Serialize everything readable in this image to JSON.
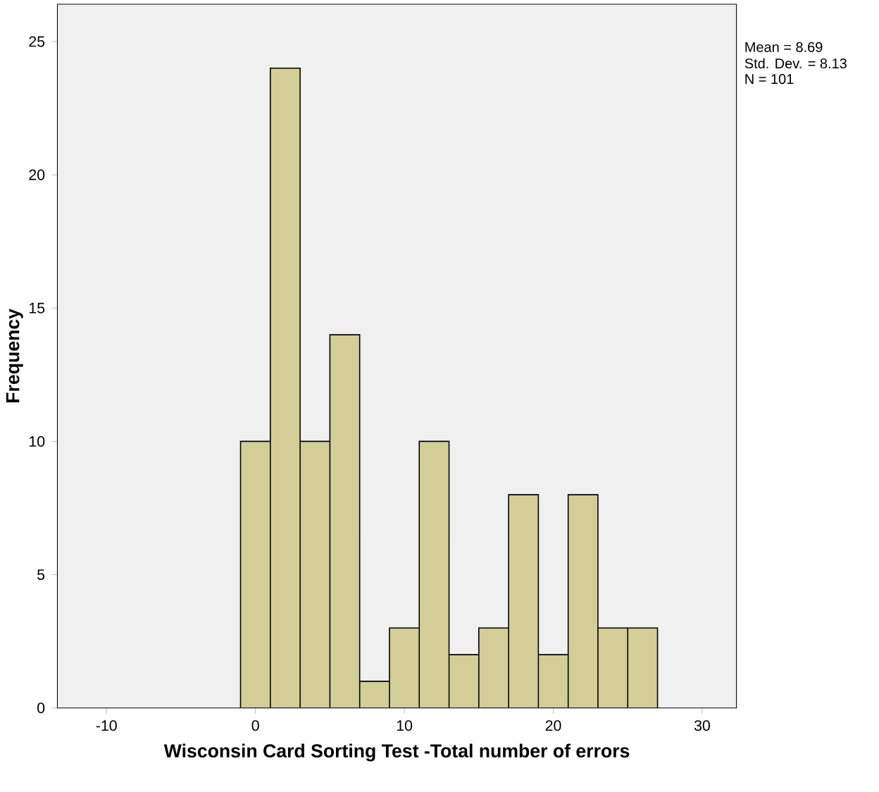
{
  "chart_data": {
    "type": "histogram",
    "xlabel": "Wisconsin Card Sorting Test -Total number of errors",
    "ylabel": "Frequency",
    "bins": [
      -1,
      1,
      3,
      5,
      7,
      9,
      11,
      13,
      15,
      17,
      19,
      21,
      23,
      25,
      27
    ],
    "values": [
      10,
      24,
      10,
      14,
      1,
      3,
      10,
      2,
      3,
      8,
      2,
      8,
      3,
      3
    ],
    "color": "#d3ce98",
    "xlim": [
      -13.3,
      32.3
    ],
    "ylim": [
      0,
      26.4
    ],
    "xticks": [
      -10,
      0,
      10,
      20,
      30
    ],
    "yticks": [
      0,
      5,
      10,
      15,
      20,
      25
    ],
    "grid": false,
    "annotations": [
      "Mean = 8.69",
      "Std. Dev. = 8.13",
      "N = 101"
    ]
  }
}
